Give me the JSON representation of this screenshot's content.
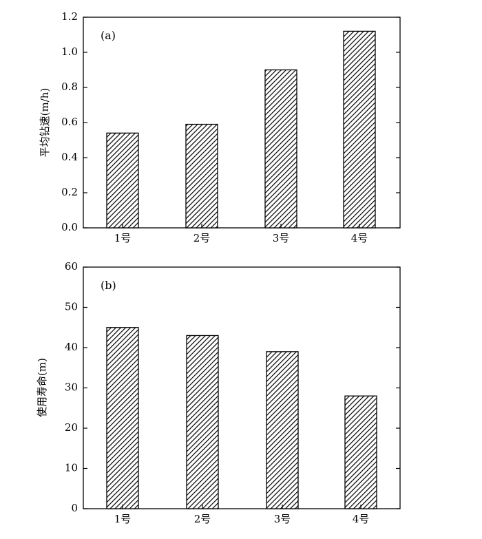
{
  "chart_data": [
    {
      "type": "bar",
      "panel_label": "(a)",
      "ylabel": "平均钻速(m/h)",
      "categories": [
        "1号",
        "2号",
        "3号",
        "4号"
      ],
      "values": [
        0.54,
        0.59,
        0.9,
        1.12
      ],
      "ylim": [
        0,
        1.2
      ],
      "yticks": [
        "0.0",
        "0.2",
        "0.4",
        "0.6",
        "0.8",
        "1.0",
        "1.2"
      ],
      "grid": false,
      "bar_fill": "diagonal-hatch",
      "colors": {
        "bar_stroke": "#000000",
        "hatch": "#000000",
        "background": "#ffffff"
      }
    },
    {
      "type": "bar",
      "panel_label": "(b)",
      "ylabel": "使用寿命(m)",
      "categories": [
        "1号",
        "2号",
        "3号",
        "4号"
      ],
      "values": [
        45,
        43,
        39,
        28
      ],
      "ylim": [
        0,
        60
      ],
      "yticks": [
        "0",
        "10",
        "20",
        "30",
        "40",
        "50",
        "60"
      ],
      "grid": false,
      "bar_fill": "diagonal-hatch",
      "colors": {
        "bar_stroke": "#000000",
        "hatch": "#000000",
        "background": "#ffffff"
      }
    }
  ]
}
